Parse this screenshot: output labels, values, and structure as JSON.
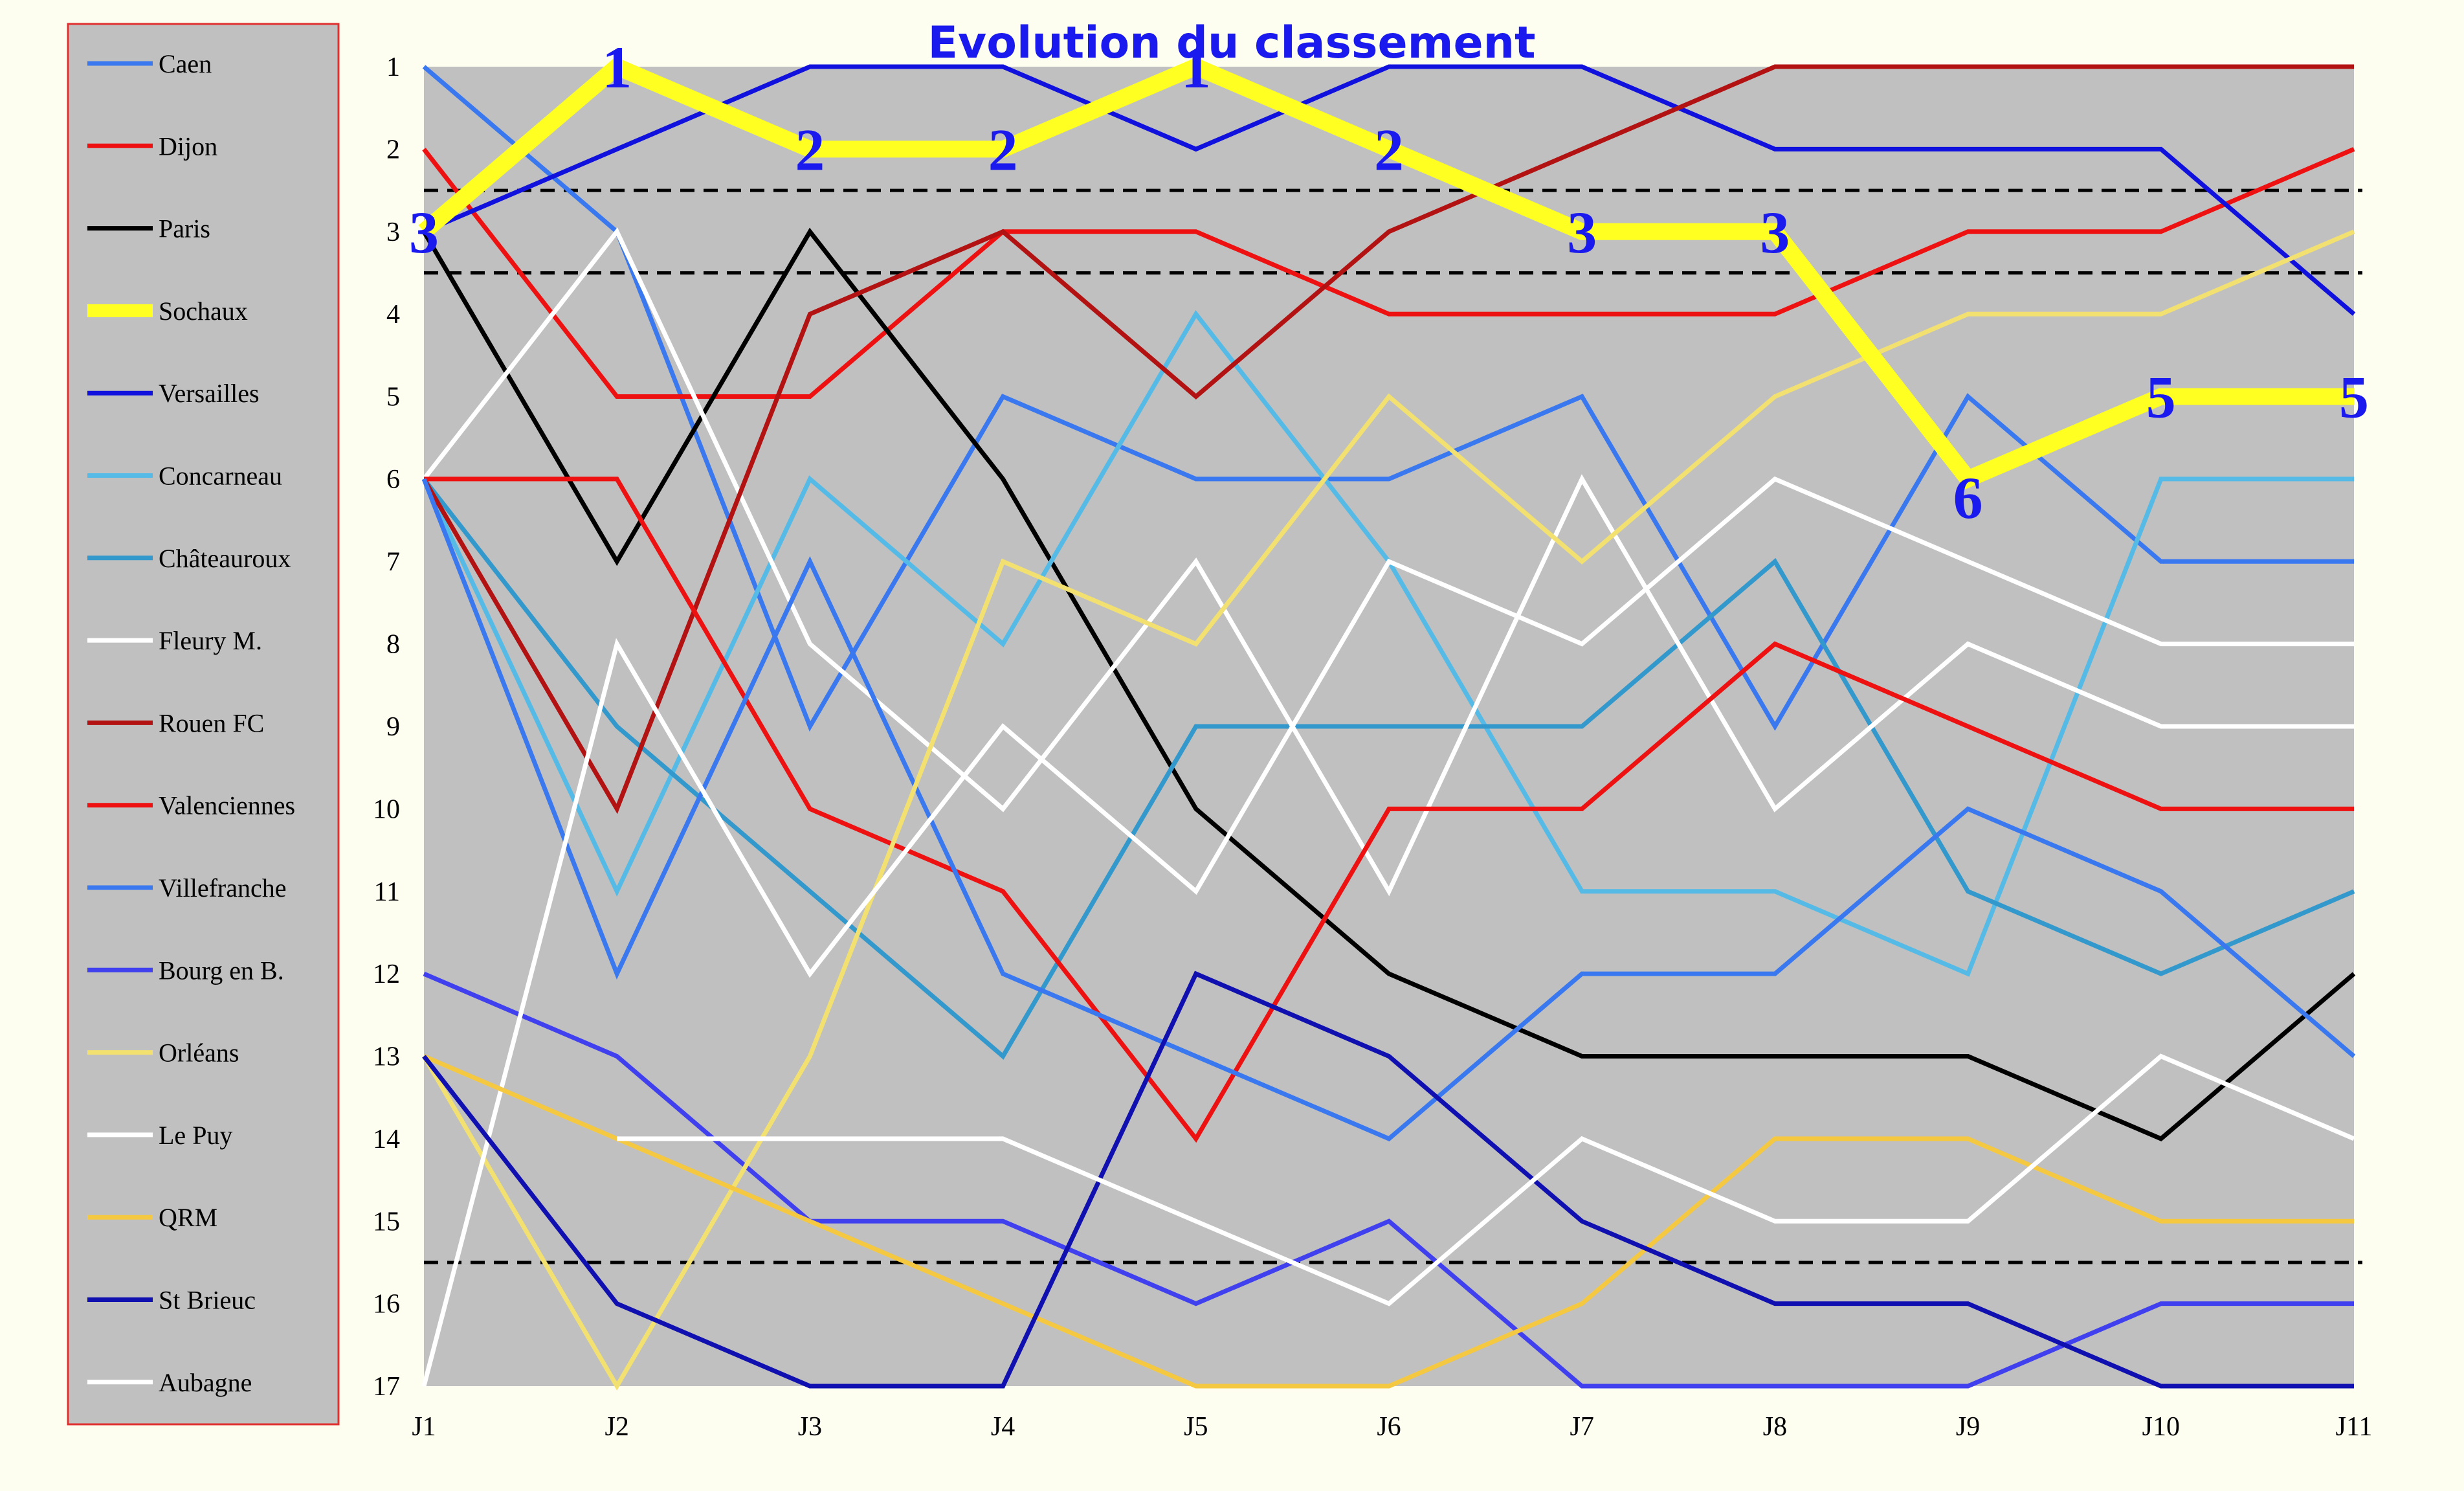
{
  "chart_data": {
    "type": "line",
    "title": "Evolution du classement",
    "xlabel": "",
    "ylabel": "",
    "categories": [
      "J1",
      "J2",
      "J3",
      "J4",
      "J5",
      "J6",
      "J7",
      "J8",
      "J9",
      "J10",
      "J11"
    ],
    "ylim": [
      1,
      17
    ],
    "y_ticks": [
      1,
      2,
      3,
      4,
      5,
      6,
      7,
      8,
      9,
      10,
      11,
      12,
      13,
      14,
      15,
      16,
      17
    ],
    "y_inverted": true,
    "reference_lines": [
      2.5,
      3.5,
      15.5
    ],
    "highlight_series": "Sochaux",
    "legend_position": "left",
    "series": [
      {
        "name": "Caen",
        "color": "#3a78f0",
        "values": [
          1,
          3,
          9,
          5,
          6,
          6,
          5,
          9,
          5,
          7,
          7
        ]
      },
      {
        "name": "Dijon",
        "color": "#ee1111",
        "values": [
          2,
          5,
          5,
          3,
          3,
          4,
          4,
          4,
          3,
          3,
          2
        ]
      },
      {
        "name": "Paris",
        "color": "#000000",
        "values": [
          3,
          7,
          3,
          6,
          10,
          12,
          13,
          13,
          13,
          14,
          12
        ]
      },
      {
        "name": "Sochaux",
        "color": "#ffff22",
        "values": [
          3,
          1,
          2,
          2,
          1,
          2,
          3,
          3,
          6,
          5,
          5
        ]
      },
      {
        "name": "Versailles",
        "color": "#1111dd",
        "values": [
          3,
          2,
          1,
          1,
          2,
          1,
          1,
          2,
          2,
          2,
          4
        ]
      },
      {
        "name": "Concarneau",
        "color": "#55bbe6",
        "values": [
          6,
          11,
          6,
          8,
          4,
          7,
          11,
          11,
          12,
          6,
          6
        ]
      },
      {
        "name": "Châteauroux",
        "color": "#3399cc",
        "values": [
          6,
          9,
          11,
          13,
          9,
          9,
          9,
          7,
          11,
          12,
          11
        ]
      },
      {
        "name": "Fleury M.",
        "color": "#ffffff",
        "values": [
          6,
          3,
          8,
          10,
          7,
          11,
          6,
          10,
          8,
          9,
          9
        ]
      },
      {
        "name": "Rouen FC",
        "color": "#b31212",
        "values": [
          6,
          10,
          4,
          3,
          5,
          3,
          2,
          1,
          1,
          1,
          1
        ]
      },
      {
        "name": "Valenciennes",
        "color": "#ee1111",
        "values": [
          6,
          6,
          10,
          11,
          14,
          10,
          10,
          8,
          9,
          10,
          10
        ]
      },
      {
        "name": "Villefranche",
        "color": "#3a78f0",
        "values": [
          6,
          12,
          7,
          12,
          13,
          14,
          12,
          12,
          10,
          11,
          13
        ]
      },
      {
        "name": "Bourg en B.",
        "color": "#4040ee",
        "values": [
          12,
          13,
          15,
          15,
          16,
          15,
          17,
          17,
          17,
          16,
          16
        ]
      },
      {
        "name": "Orléans",
        "color": "#f2e070",
        "values": [
          13,
          17,
          13,
          7,
          8,
          5,
          7,
          5,
          4,
          4,
          3
        ]
      },
      {
        "name": "Le Puy",
        "color": "#ffffff",
        "values": [
          17,
          8,
          12,
          9,
          11,
          7,
          8,
          6,
          7,
          8,
          8
        ]
      },
      {
        "name": "QRM",
        "color": "#f5c842",
        "values": [
          13,
          14,
          15,
          16,
          17,
          17,
          16,
          14,
          14,
          15,
          15
        ]
      },
      {
        "name": "St Brieuc",
        "color": "#1010b0",
        "values": [
          13,
          16,
          17,
          17,
          12,
          13,
          15,
          16,
          16,
          17,
          17
        ]
      },
      {
        "name": "Aubagne",
        "color": "#ffffff",
        "values": [
          null,
          14,
          14,
          14,
          15,
          16,
          14,
          15,
          15,
          13,
          14
        ]
      }
    ]
  }
}
